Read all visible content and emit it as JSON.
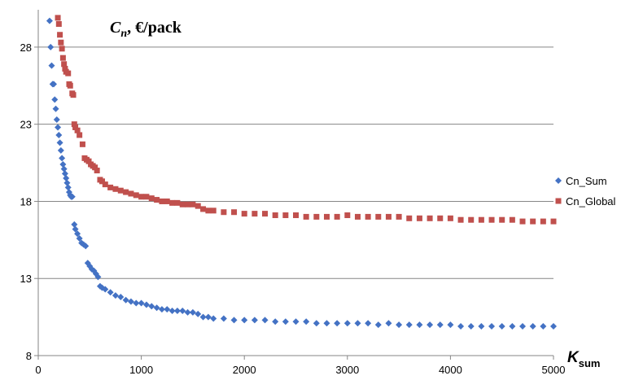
{
  "chart_data": {
    "type": "scatter",
    "y_axis_label": {
      "var": "C",
      "sub": "n",
      "rest": ", €/pack"
    },
    "x_axis_label": {
      "var": "K",
      "sub": "sum"
    },
    "xlim": [
      0,
      5000
    ],
    "ylim": [
      8,
      30
    ],
    "x_ticks": [
      "0",
      "1000",
      "2000",
      "3000",
      "4000",
      "5000"
    ],
    "y_ticks": [
      "8",
      "13",
      "18",
      "23",
      "28"
    ],
    "grid": "horizontal",
    "legend": "right",
    "series": [
      {
        "name": "Cn_Sum",
        "color": "#4472C4",
        "marker": "diamond",
        "points": [
          [
            110,
            29.7
          ],
          [
            120,
            28.0
          ],
          [
            130,
            26.8
          ],
          [
            140,
            25.6
          ],
          [
            150,
            25.6
          ],
          [
            160,
            24.6
          ],
          [
            170,
            24.0
          ],
          [
            180,
            23.3
          ],
          [
            190,
            22.8
          ],
          [
            200,
            22.3
          ],
          [
            210,
            21.8
          ],
          [
            220,
            21.3
          ],
          [
            230,
            20.8
          ],
          [
            240,
            20.4
          ],
          [
            250,
            20.1
          ],
          [
            260,
            19.8
          ],
          [
            270,
            19.5
          ],
          [
            280,
            19.2
          ],
          [
            290,
            18.9
          ],
          [
            300,
            18.6
          ],
          [
            310,
            18.4
          ],
          [
            320,
            18.3
          ],
          [
            330,
            18.3
          ],
          [
            350,
            16.5
          ],
          [
            360,
            16.2
          ],
          [
            380,
            15.9
          ],
          [
            400,
            15.6
          ],
          [
            420,
            15.3
          ],
          [
            440,
            15.2
          ],
          [
            460,
            15.1
          ],
          [
            480,
            14.0
          ],
          [
            500,
            13.8
          ],
          [
            520,
            13.6
          ],
          [
            540,
            13.5
          ],
          [
            560,
            13.3
          ],
          [
            580,
            13.1
          ],
          [
            600,
            12.5
          ],
          [
            620,
            12.4
          ],
          [
            650,
            12.3
          ],
          [
            700,
            12.1
          ],
          [
            750,
            11.9
          ],
          [
            800,
            11.8
          ],
          [
            850,
            11.6
          ],
          [
            900,
            11.5
          ],
          [
            950,
            11.4
          ],
          [
            1000,
            11.4
          ],
          [
            1050,
            11.3
          ],
          [
            1100,
            11.2
          ],
          [
            1150,
            11.1
          ],
          [
            1200,
            11.0
          ],
          [
            1250,
            11.0
          ],
          [
            1300,
            10.9
          ],
          [
            1350,
            10.9
          ],
          [
            1400,
            10.9
          ],
          [
            1450,
            10.8
          ],
          [
            1500,
            10.8
          ],
          [
            1550,
            10.7
          ],
          [
            1600,
            10.5
          ],
          [
            1650,
            10.5
          ],
          [
            1700,
            10.4
          ],
          [
            1800,
            10.4
          ],
          [
            1900,
            10.3
          ],
          [
            2000,
            10.3
          ],
          [
            2100,
            10.3
          ],
          [
            2200,
            10.3
          ],
          [
            2300,
            10.2
          ],
          [
            2400,
            10.2
          ],
          [
            2500,
            10.2
          ],
          [
            2600,
            10.2
          ],
          [
            2700,
            10.1
          ],
          [
            2800,
            10.1
          ],
          [
            2900,
            10.1
          ],
          [
            3000,
            10.1
          ],
          [
            3100,
            10.1
          ],
          [
            3200,
            10.1
          ],
          [
            3300,
            10.0
          ],
          [
            3400,
            10.1
          ],
          [
            3500,
            10.0
          ],
          [
            3600,
            10.0
          ],
          [
            3700,
            10.0
          ],
          [
            3800,
            10.0
          ],
          [
            3900,
            10.0
          ],
          [
            4000,
            10.0
          ],
          [
            4100,
            9.9
          ],
          [
            4200,
            9.9
          ],
          [
            4300,
            9.9
          ],
          [
            4400,
            9.9
          ],
          [
            4500,
            9.9
          ],
          [
            4600,
            9.9
          ],
          [
            4700,
            9.9
          ],
          [
            4800,
            9.9
          ],
          [
            4900,
            9.9
          ],
          [
            5000,
            9.9
          ]
        ]
      },
      {
        "name": "Cn_Global",
        "color": "#C0504D",
        "marker": "square",
        "points": [
          [
            190,
            29.9
          ],
          [
            200,
            29.5
          ],
          [
            210,
            28.8
          ],
          [
            220,
            28.3
          ],
          [
            230,
            27.9
          ],
          [
            240,
            27.3
          ],
          [
            250,
            26.9
          ],
          [
            260,
            26.6
          ],
          [
            270,
            26.4
          ],
          [
            290,
            26.3
          ],
          [
            300,
            25.6
          ],
          [
            310,
            25.5
          ],
          [
            330,
            25.0
          ],
          [
            340,
            24.9
          ],
          [
            350,
            23.0
          ],
          [
            360,
            22.8
          ],
          [
            380,
            22.6
          ],
          [
            400,
            22.3
          ],
          [
            430,
            21.7
          ],
          [
            450,
            20.8
          ],
          [
            470,
            20.7
          ],
          [
            490,
            20.6
          ],
          [
            510,
            20.4
          ],
          [
            530,
            20.3
          ],
          [
            550,
            20.2
          ],
          [
            570,
            20.0
          ],
          [
            600,
            19.4
          ],
          [
            620,
            19.3
          ],
          [
            650,
            19.1
          ],
          [
            700,
            18.9
          ],
          [
            750,
            18.8
          ],
          [
            800,
            18.7
          ],
          [
            850,
            18.6
          ],
          [
            900,
            18.5
          ],
          [
            950,
            18.4
          ],
          [
            1000,
            18.3
          ],
          [
            1050,
            18.3
          ],
          [
            1100,
            18.2
          ],
          [
            1150,
            18.1
          ],
          [
            1200,
            18.0
          ],
          [
            1250,
            18.0
          ],
          [
            1300,
            17.9
          ],
          [
            1350,
            17.9
          ],
          [
            1400,
            17.8
          ],
          [
            1450,
            17.8
          ],
          [
            1500,
            17.8
          ],
          [
            1550,
            17.7
          ],
          [
            1600,
            17.5
          ],
          [
            1650,
            17.4
          ],
          [
            1700,
            17.4
          ],
          [
            1800,
            17.3
          ],
          [
            1900,
            17.3
          ],
          [
            2000,
            17.2
          ],
          [
            2100,
            17.2
          ],
          [
            2200,
            17.2
          ],
          [
            2300,
            17.1
          ],
          [
            2400,
            17.1
          ],
          [
            2500,
            17.1
          ],
          [
            2600,
            17.0
          ],
          [
            2700,
            17.0
          ],
          [
            2800,
            17.0
          ],
          [
            2900,
            17.0
          ],
          [
            3000,
            17.1
          ],
          [
            3100,
            17.0
          ],
          [
            3200,
            17.0
          ],
          [
            3300,
            17.0
          ],
          [
            3400,
            17.0
          ],
          [
            3500,
            17.0
          ],
          [
            3600,
            16.9
          ],
          [
            3700,
            16.9
          ],
          [
            3800,
            16.9
          ],
          [
            3900,
            16.9
          ],
          [
            4000,
            16.9
          ],
          [
            4100,
            16.8
          ],
          [
            4200,
            16.8
          ],
          [
            4300,
            16.8
          ],
          [
            4400,
            16.8
          ],
          [
            4500,
            16.8
          ],
          [
            4600,
            16.8
          ],
          [
            4700,
            16.7
          ],
          [
            4800,
            16.7
          ],
          [
            4900,
            16.7
          ],
          [
            5000,
            16.7
          ]
        ]
      }
    ]
  }
}
